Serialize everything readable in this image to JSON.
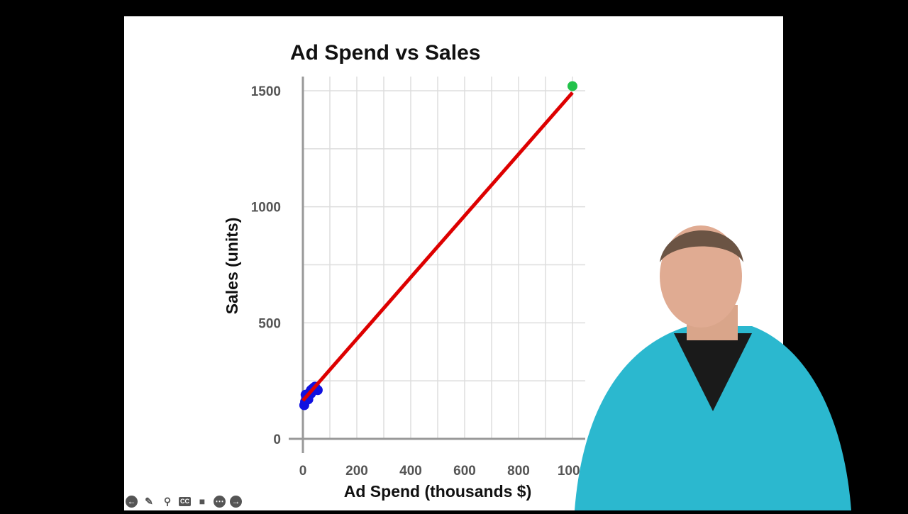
{
  "chart_data": {
    "type": "scatter",
    "title": "Ad Spend vs Sales",
    "xlabel": "Ad Spend (thousands $)",
    "ylabel": "Sales (units)",
    "xlim": [
      0,
      1000
    ],
    "ylim": [
      0,
      1500
    ],
    "xticks": [
      "0",
      "200",
      "400",
      "600",
      "800",
      "1000"
    ],
    "yticks": [
      "0",
      "500",
      "1000",
      "1500"
    ],
    "grid": true,
    "series": [
      {
        "color": "#1010e0",
        "points": [
          [
            5,
            145
          ],
          [
            8,
            160
          ],
          [
            12,
            175
          ],
          [
            15,
            185
          ],
          [
            20,
            190
          ],
          [
            25,
            200
          ],
          [
            30,
            210
          ],
          [
            35,
            215
          ],
          [
            40,
            220
          ],
          [
            45,
            225
          ],
          [
            50,
            215
          ],
          [
            55,
            210
          ],
          [
            10,
            190
          ],
          [
            20,
            170
          ],
          [
            30,
            195
          ]
        ]
      },
      {
        "color": "#22c24a",
        "points": [
          [
            1000,
            1520
          ]
        ]
      }
    ],
    "fit_line": {
      "color": "#dd0000",
      "from": [
        0,
        165
      ],
      "to": [
        1000,
        1492
      ]
    }
  },
  "toolbar": {
    "icons": [
      "arrow-left-icon",
      "pencil-icon",
      "search-icon",
      "cc-icon",
      "video-icon",
      "more-icon",
      "arrow-right-icon"
    ],
    "cc_label": "CC"
  }
}
